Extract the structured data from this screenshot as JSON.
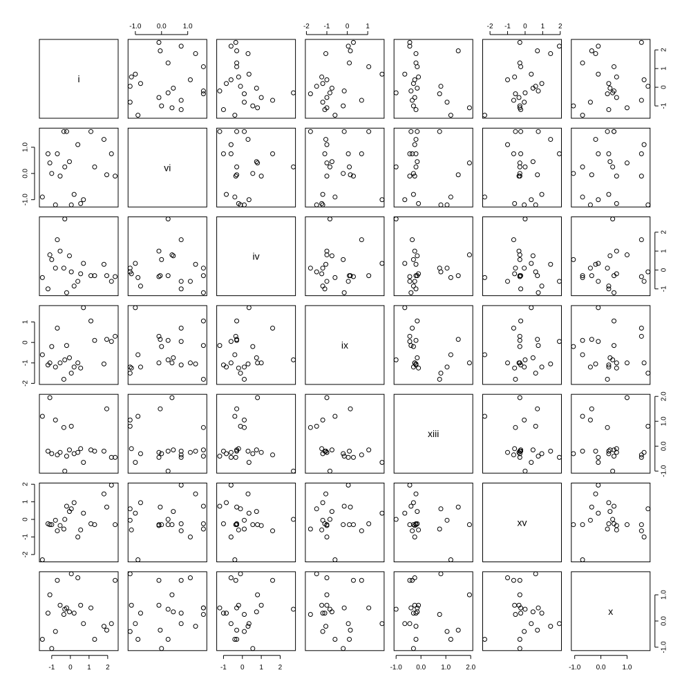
{
  "chart_data": {
    "type": "scatter",
    "subtype": "scatterplot-matrix",
    "title": "",
    "variables": [
      {
        "name": "i",
        "axis_ticks": [
          -1,
          0,
          1,
          2
        ],
        "tick_labels": [
          "-1",
          "0",
          "1",
          "2"
        ],
        "range": [
          -1.55,
          2.45
        ],
        "values": [
          -1.5,
          -1.2,
          -1.1,
          -1.0,
          -0.8,
          -0.7,
          -0.55,
          -0.35,
          -0.3,
          -0.2,
          -0.05,
          0.05,
          0.2,
          0.4,
          0.55,
          0.7,
          1.1,
          1.3,
          1.8,
          1.95,
          2.2,
          2.4
        ]
      },
      {
        "name": "vi",
        "axis_ticks": [
          -1.0,
          0.0,
          1.0
        ],
        "tick_labels": [
          "-1.0",
          "0.0",
          "1.0"
        ],
        "range": [
          -1.2,
          1.65
        ],
        "values": [
          -0.9,
          0.75,
          0.4,
          0.0,
          -1.2,
          0.75,
          -0.1,
          1.6,
          0.25,
          1.6,
          0.45,
          -1.2,
          -0.8,
          1.1,
          -1.15,
          -1.0,
          1.6,
          0.25,
          1.3,
          -0.05,
          0.75,
          -0.1
        ]
      },
      {
        "name": "iv",
        "axis_ticks": [
          -1,
          0,
          1,
          2
        ],
        "tick_labels": [
          "-1",
          "0",
          "1",
          "2"
        ],
        "range": [
          -1.25,
          2.7
        ],
        "values": [
          -0.4,
          -1.0,
          0.8,
          0.55,
          0.1,
          1.6,
          1.0,
          0.1,
          2.7,
          -1.2,
          0.75,
          -0.1,
          -0.85,
          -0.6,
          -0.2,
          0.35,
          -0.3,
          -0.3,
          0.3,
          -0.3,
          -0.6,
          -0.35
        ]
      },
      {
        "name": "ix",
        "axis_ticks": [
          -2,
          -1,
          0,
          1
        ],
        "tick_labels": [
          "-2",
          "-1",
          "0",
          "1"
        ],
        "range": [
          -1.95,
          1.7
        ],
        "values": [
          -0.6,
          -1.1,
          -1.0,
          -0.2,
          -1.2,
          0.7,
          -1.0,
          -1.8,
          -0.85,
          -0.15,
          -0.75,
          -1.5,
          -1.2,
          -1.0,
          -1.25,
          1.7,
          1.05,
          0.1,
          -1.05,
          0.15,
          0.05,
          0.3
        ]
      },
      {
        "name": "xiii",
        "axis_ticks": [
          -1.0,
          0.0,
          1.0,
          2.0
        ],
        "tick_labels": [
          "-1.0",
          "0.0",
          "1.0",
          "2.0"
        ],
        "range": [
          -1.0,
          2.0
        ],
        "values": [
          1.2,
          -0.2,
          1.95,
          -0.3,
          1.05,
          -0.35,
          -0.25,
          0.75,
          -1.0,
          -0.4,
          -0.15,
          0.8,
          -0.3,
          -0.25,
          -0.1,
          -0.65,
          -0.15,
          -0.2,
          -0.2,
          1.5,
          -0.45,
          -0.45
        ]
      },
      {
        "name": "xv",
        "axis_ticks": [
          -2,
          -1,
          0,
          1,
          2
        ],
        "tick_labels": [
          "-2",
          "-1",
          "0",
          "1",
          "2"
        ],
        "range": [
          -2.3,
          1.95
        ],
        "values": [
          -2.3,
          -0.25,
          -0.3,
          -0.3,
          -0.05,
          -0.65,
          -0.35,
          -0.55,
          0.0,
          0.75,
          0.45,
          0.6,
          0.95,
          -1.0,
          -0.6,
          0.35,
          -0.25,
          -0.3,
          1.45,
          0.7,
          1.95,
          -0.3
        ]
      },
      {
        "name": "x",
        "axis_ticks": [
          -1.0,
          0.0,
          1.0
        ],
        "tick_labels": [
          "-1.0",
          "0.0",
          "1.0"
        ],
        "range": [
          -1.05,
          1.8
        ],
        "values": [
          -0.7,
          0.3,
          1.0,
          -1.05,
          -0.4,
          1.55,
          0.6,
          0.25,
          0.45,
          0.5,
          0.35,
          1.8,
          0.3,
          1.65,
          0.6,
          -0.1,
          0.5,
          -0.7,
          -0.2,
          -0.35,
          -0.1,
          1.55
        ]
      }
    ],
    "point_shape": "open-circle",
    "grid": false,
    "legend": "none"
  }
}
